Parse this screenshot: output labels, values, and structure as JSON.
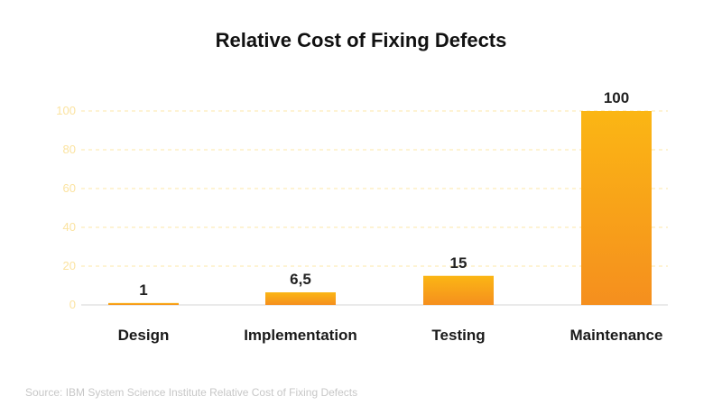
{
  "chart_data": {
    "type": "bar",
    "title": "Relative Cost of Fixing Defects",
    "categories": [
      "Design",
      "Implementation",
      "Testing",
      "Maintenance"
    ],
    "values": [
      1,
      6.5,
      15,
      100
    ],
    "value_labels": [
      "1",
      "6,5",
      "15",
      "100"
    ],
    "yticks": [
      0,
      20,
      40,
      60,
      80,
      100
    ],
    "ylim": [
      0,
      100
    ],
    "xlabel": "",
    "ylabel": "",
    "grid": true,
    "legend": "none",
    "colors": {
      "bar_top": "#fbb614",
      "bar_bottom": "#f58f1e",
      "grid": "#fde7a7",
      "tick_label": "#fbe3a0",
      "axis": "#d6d6d6"
    }
  },
  "source": "Source: IBM System Science Institute Relative Cost of Fixing Defects"
}
